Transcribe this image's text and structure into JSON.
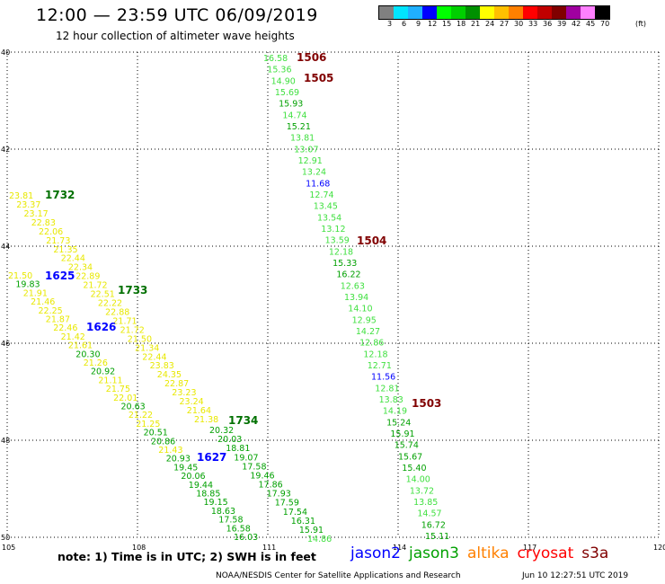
{
  "header": {
    "title": "12:00 — 23:59 UTC 06/09/2019",
    "subtitle": "12 hour collection of altimeter wave heights"
  },
  "legend": {
    "unit": "(ft)",
    "colors": [
      "#808080",
      "#00e5ff",
      "#20b0ff",
      "#0000ff",
      "#00ff00",
      "#00d000",
      "#009000",
      "#ffff00",
      "#ffc000",
      "#ff8000",
      "#ff0000",
      "#c00000",
      "#800000",
      "#a000a0",
      "#ff80ff",
      "#000000"
    ],
    "labels": [
      "3",
      "6",
      "9",
      "12",
      "15",
      "18",
      "21",
      "24",
      "27",
      "30",
      "33",
      "36",
      "39",
      "42",
      "45",
      "70"
    ]
  },
  "map": {
    "lat_labels": [
      "40",
      "42",
      "44",
      "46",
      "48",
      "50"
    ],
    "lon_labels": [
      "105",
      "108",
      "111",
      "114",
      "117",
      "120"
    ],
    "colors": {
      "lt_green": "#40e040",
      "green": "#00a000",
      "yellow": "#e8e800",
      "blue": "#0000ff",
      "maroon": "#800000",
      "dark_green": "#007000"
    },
    "track_hours": [
      {
        "text": "1506",
        "color": "#800000"
      },
      {
        "text": "1505",
        "color": "#800000"
      },
      {
        "text": "1504",
        "color": "#800000"
      },
      {
        "text": "1503",
        "color": "#800000"
      },
      {
        "text": "1732",
        "color": "#007000"
      },
      {
        "text": "1733",
        "color": "#007000"
      },
      {
        "text": "1734",
        "color": "#007000"
      },
      {
        "text": "1625",
        "color": "#0000ff"
      },
      {
        "text": "1626",
        "color": "#0000ff"
      },
      {
        "text": "1627",
        "color": "#0000ff"
      }
    ],
    "cryosat_track_a": [
      {
        "v": "16.58",
        "c": "#40e040"
      },
      {
        "v": "15.36",
        "c": "#40e040"
      },
      {
        "v": "14.90",
        "c": "#40e040"
      },
      {
        "v": "15.69",
        "c": "#40e040"
      },
      {
        "v": "15.93",
        "c": "#00a000"
      },
      {
        "v": "14.74",
        "c": "#40e040"
      },
      {
        "v": "15.21",
        "c": "#00a000"
      },
      {
        "v": "13.81",
        "c": "#40e040"
      },
      {
        "v": "13.07",
        "c": "#40e040"
      },
      {
        "v": "12.91",
        "c": "#40e040"
      },
      {
        "v": "13.24",
        "c": "#40e040"
      },
      {
        "v": "11.68",
        "c": "#0000ff"
      },
      {
        "v": "12.74",
        "c": "#40e040"
      },
      {
        "v": "13.45",
        "c": "#40e040"
      },
      {
        "v": "13.54",
        "c": "#40e040"
      },
      {
        "v": "13.12",
        "c": "#40e040"
      },
      {
        "v": "13.59",
        "c": "#40e040"
      },
      {
        "v": "12.18",
        "c": "#40e040"
      },
      {
        "v": "15.33",
        "c": "#00a000"
      },
      {
        "v": "16.22",
        "c": "#00a000"
      },
      {
        "v": "12.63",
        "c": "#40e040"
      },
      {
        "v": "13.94",
        "c": "#40e040"
      },
      {
        "v": "14.10",
        "c": "#40e040"
      },
      {
        "v": "12.95",
        "c": "#40e040"
      },
      {
        "v": "14.27",
        "c": "#40e040"
      },
      {
        "v": "12.86",
        "c": "#40e040"
      },
      {
        "v": "12.18",
        "c": "#40e040"
      },
      {
        "v": "12.71",
        "c": "#40e040"
      },
      {
        "v": "11.56",
        "c": "#0000ff"
      },
      {
        "v": "12.81",
        "c": "#40e040"
      },
      {
        "v": "13.83",
        "c": "#40e040"
      },
      {
        "v": "14.19",
        "c": "#40e040"
      },
      {
        "v": "15.24",
        "c": "#00a000"
      },
      {
        "v": "15.91",
        "c": "#00a000"
      },
      {
        "v": "15.74",
        "c": "#00a000"
      },
      {
        "v": "15.67",
        "c": "#00a000"
      },
      {
        "v": "15.40",
        "c": "#00a000"
      },
      {
        "v": "14.00",
        "c": "#40e040"
      },
      {
        "v": "13.72",
        "c": "#40e040"
      },
      {
        "v": "13.85",
        "c": "#40e040"
      },
      {
        "v": "14.57",
        "c": "#40e040"
      },
      {
        "v": "16.72",
        "c": "#00a000"
      },
      {
        "v": "15.11",
        "c": "#00a000"
      }
    ],
    "jason3_track_a": [
      "23.81",
      "23.37",
      "23.17",
      "22.83",
      "22.06",
      "21.73",
      "21.35",
      "22.44",
      "22.34",
      "22.89",
      "21.72",
      "22.51",
      "22.22",
      "22.88",
      "21.71",
      "21.72",
      "21.50",
      "21.34",
      "22.44",
      "23.83",
      "24.35",
      "22.87",
      "23.23",
      "23.24",
      "21.64",
      "21.38"
    ],
    "jason2_track_a": [
      {
        "v": "21.50",
        "c": "#e8e800"
      },
      {
        "v": "19.83",
        "c": "#00a000"
      },
      {
        "v": "21.91",
        "c": "#e8e800"
      },
      {
        "v": "21.46",
        "c": "#e8e800"
      },
      {
        "v": "22.25",
        "c": "#e8e800"
      },
      {
        "v": "21.87",
        "c": "#e8e800"
      },
      {
        "v": "22.46",
        "c": "#e8e800"
      },
      {
        "v": "21.42",
        "c": "#e8e800"
      },
      {
        "v": "21.61",
        "c": "#e8e800"
      },
      {
        "v": "20.30",
        "c": "#00a000"
      },
      {
        "v": "21.26",
        "c": "#e8e800"
      },
      {
        "v": "20.92",
        "c": "#00a000"
      },
      {
        "v": "21.11",
        "c": "#e8e800"
      },
      {
        "v": "21.75",
        "c": "#e8e800"
      },
      {
        "v": "22.01",
        "c": "#e8e800"
      },
      {
        "v": "20.63",
        "c": "#00a000"
      },
      {
        "v": "21.22",
        "c": "#e8e800"
      },
      {
        "v": "21.25",
        "c": "#e8e800"
      },
      {
        "v": "20.51",
        "c": "#00a000"
      },
      {
        "v": "20.86",
        "c": "#00a000"
      },
      {
        "v": "21.43",
        "c": "#e8e800"
      },
      {
        "v": "20.93",
        "c": "#00a000"
      },
      {
        "v": "19.45",
        "c": "#00a000"
      },
      {
        "v": "20.06",
        "c": "#00a000"
      },
      {
        "v": "19.44",
        "c": "#00a000"
      },
      {
        "v": "18.85",
        "c": "#00a000"
      },
      {
        "v": "19.15",
        "c": "#00a000"
      },
      {
        "v": "18.63",
        "c": "#00a000"
      },
      {
        "v": "17.58",
        "c": "#00a000"
      },
      {
        "v": "16.58",
        "c": "#00a000"
      },
      {
        "v": "16.03",
        "c": "#00a000"
      }
    ],
    "jason3_track_b": [
      {
        "v": "20.32",
        "c": "#00a000"
      },
      {
        "v": "20.03",
        "c": "#00a000"
      },
      {
        "v": "18.81",
        "c": "#00a000"
      },
      {
        "v": "19.07",
        "c": "#00a000"
      },
      {
        "v": "17.58",
        "c": "#00a000"
      },
      {
        "v": "19.46",
        "c": "#00a000"
      },
      {
        "v": "17.86",
        "c": "#00a000"
      },
      {
        "v": "17.93",
        "c": "#00a000"
      },
      {
        "v": "17.59",
        "c": "#00a000"
      },
      {
        "v": "17.54",
        "c": "#00a000"
      },
      {
        "v": "16.31",
        "c": "#00a000"
      },
      {
        "v": "15.91",
        "c": "#00a000"
      },
      {
        "v": "14.86",
        "c": "#40e040"
      }
    ]
  },
  "footer": {
    "note": "note:  1) Time is in UTC;  2) SWH is in feet",
    "satellites": [
      {
        "name": "jason2",
        "color": "#0000ff"
      },
      {
        "name": "jason3",
        "color": "#00a000"
      },
      {
        "name": "altika",
        "color": "#ff8000"
      },
      {
        "name": "cryosat",
        "color": "#ff0000"
      },
      {
        "name": "s3a",
        "color": "#800000"
      }
    ],
    "credit": "NOAA/NESDIS Center for Satellite Applications and Research",
    "timestamp": "Jun 10 12:27:51 UTC 2019"
  }
}
